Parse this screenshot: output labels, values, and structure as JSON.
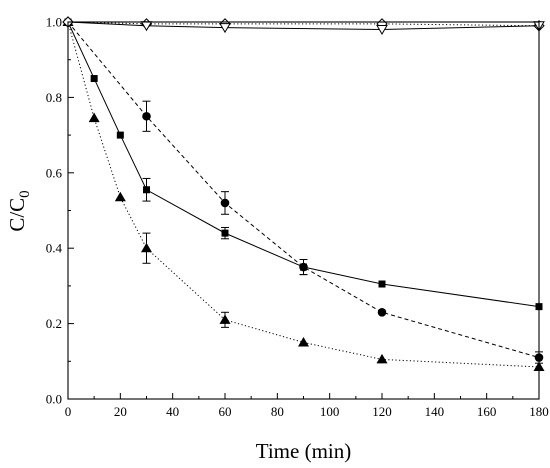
{
  "chart_data": {
    "type": "line",
    "title": "",
    "xlabel": "Time (min)",
    "ylabel_main": "C/C",
    "ylabel_sub": "0",
    "xlim": [
      0,
      180
    ],
    "ylim": [
      0.0,
      1.0
    ],
    "xticks": [
      "0",
      "20",
      "40",
      "60",
      "80",
      "100",
      "120",
      "140",
      "160",
      "180"
    ],
    "yticks": [
      "0.0",
      "0.2",
      "0.4",
      "0.6",
      "0.8",
      "1.0"
    ],
    "grid": false,
    "legend": "none",
    "series": [
      {
        "marker": "square-filled",
        "line": "solid",
        "color": "#000000",
        "points": [
          [
            0,
            1.0
          ],
          [
            10,
            0.85
          ],
          [
            20,
            0.7
          ],
          [
            30,
            0.555
          ],
          [
            60,
            0.44
          ],
          [
            90,
            0.35
          ],
          [
            120,
            0.305
          ],
          [
            180,
            0.245
          ]
        ],
        "errors": [
          0,
          0,
          0,
          0.03,
          0.015,
          0.02,
          0,
          0
        ]
      },
      {
        "marker": "circle-filled",
        "line": "dashed",
        "color": "#000000",
        "points": [
          [
            0,
            1.0
          ],
          [
            30,
            0.75
          ],
          [
            60,
            0.52
          ],
          [
            90,
            0.35
          ],
          [
            120,
            0.23
          ],
          [
            180,
            0.11
          ]
        ],
        "errors": [
          0,
          0.04,
          0.03,
          0.02,
          0,
          0.015
        ]
      },
      {
        "marker": "triangle-filled",
        "line": "dotted",
        "color": "#000000",
        "points": [
          [
            0,
            1.0
          ],
          [
            10,
            0.745
          ],
          [
            20,
            0.535
          ],
          [
            30,
            0.4
          ],
          [
            60,
            0.21
          ],
          [
            90,
            0.15
          ],
          [
            120,
            0.105
          ],
          [
            180,
            0.085
          ]
        ],
        "errors": [
          0,
          0,
          0,
          0.04,
          0.02,
          0,
          0,
          0
        ]
      },
      {
        "marker": "diamond-open",
        "line": "dotted",
        "color": "#000000",
        "points": [
          [
            0,
            1.0
          ],
          [
            30,
            0.995
          ],
          [
            60,
            0.995
          ],
          [
            120,
            0.995
          ],
          [
            180,
            0.99
          ]
        ],
        "errors": [
          0,
          0,
          0,
          0,
          0
        ]
      },
      {
        "marker": "triangle-down-open",
        "line": "solid",
        "color": "#000000",
        "points": [
          [
            0,
            1.0
          ],
          [
            30,
            0.99
          ],
          [
            60,
            0.985
          ],
          [
            120,
            0.98
          ],
          [
            180,
            0.99
          ]
        ],
        "errors": [
          0,
          0,
          0,
          0,
          0
        ]
      }
    ]
  }
}
